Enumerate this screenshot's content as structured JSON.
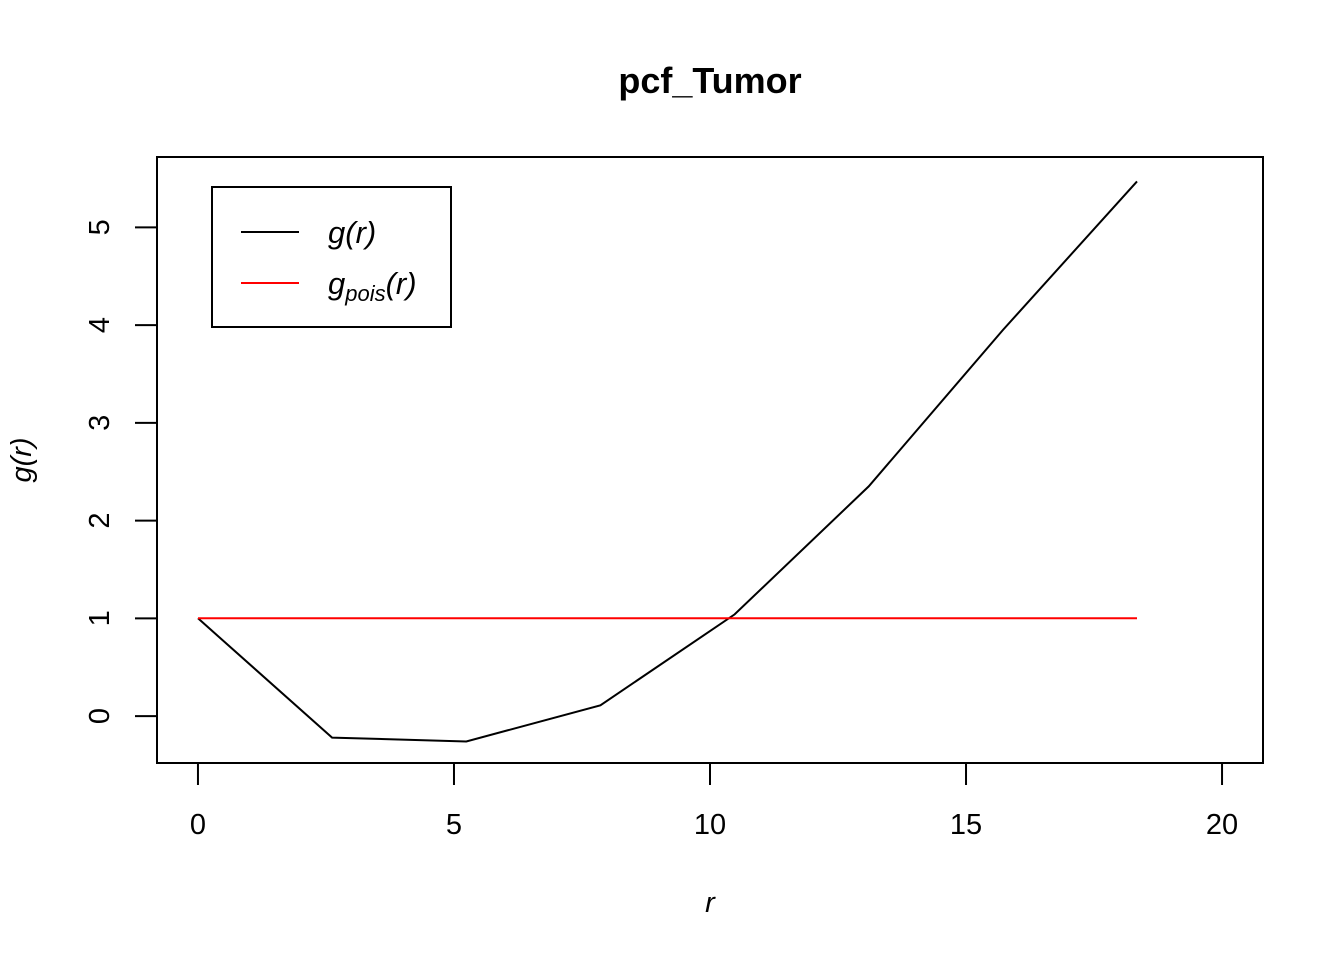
{
  "chart_data": {
    "type": "line",
    "title": "pcf_Tumor",
    "xlabel": "r",
    "ylabel": "g(r)",
    "xlim": [
      -0.8,
      20.8
    ],
    "ylim": [
      -0.48,
      5.72
    ],
    "xticks": [
      "0",
      "5",
      "10",
      "15",
      "20"
    ],
    "yticks": [
      "0",
      "1",
      "2",
      "3",
      "4",
      "5"
    ],
    "grid": false,
    "legend_position": "top-left",
    "series": [
      {
        "name": "g(r)",
        "color": "#000000",
        "x": [
          0,
          2.62,
          5.24,
          7.86,
          10.48,
          13.1,
          15.72,
          18.34
        ],
        "y": [
          1.0,
          -0.22,
          -0.26,
          0.11,
          1.04,
          2.35,
          3.95,
          5.47
        ]
      },
      {
        "name": "g_pois(r)",
        "color": "#ff0000",
        "x": [
          0,
          18.34
        ],
        "y": [
          1.0,
          1.0
        ]
      }
    ],
    "legend": [
      {
        "base": "g",
        "sub": "",
        "arg": "(r)",
        "color": "#000000"
      },
      {
        "base": "g",
        "sub": "pois",
        "arg": "(r)",
        "color": "#ff0000"
      }
    ]
  }
}
